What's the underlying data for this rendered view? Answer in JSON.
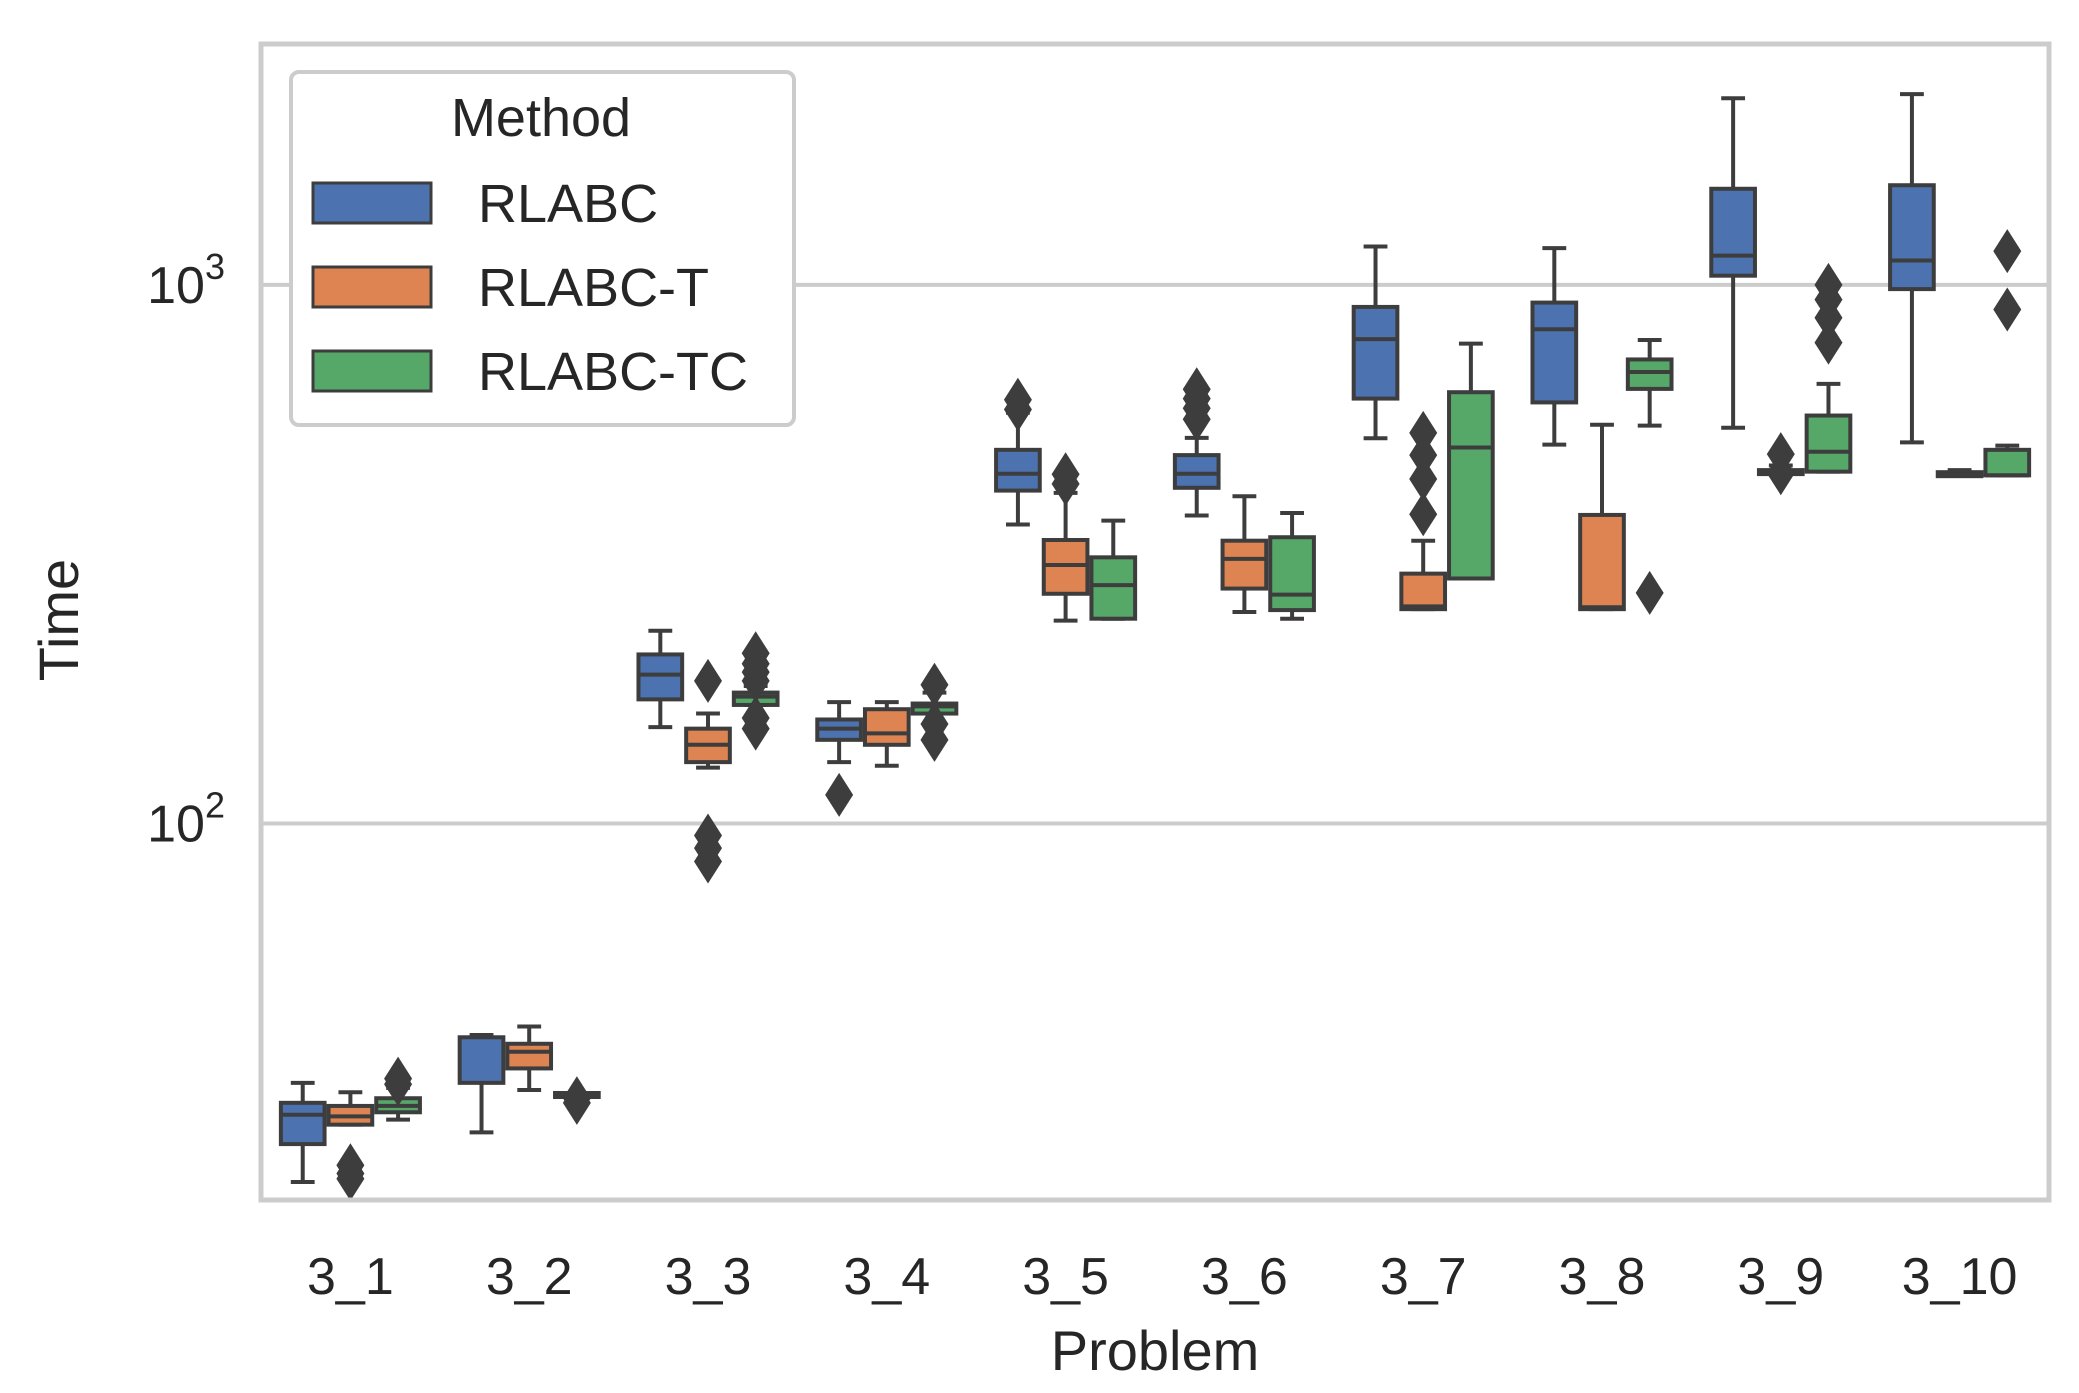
{
  "chart_data": {
    "type": "boxplot",
    "xlabel": "Problem",
    "ylabel": "Time",
    "yscale": "log",
    "ylim": [
      20,
      2800
    ],
    "yticks": [
      {
        "value": 100,
        "base": "10",
        "exp": "2"
      },
      {
        "value": 1000,
        "base": "10",
        "exp": "3"
      }
    ],
    "grid": true,
    "categories": [
      "3_1",
      "3_2",
      "3_3",
      "3_4",
      "3_5",
      "3_6",
      "3_7",
      "3_8",
      "3_9",
      "3_10"
    ],
    "legend": {
      "title": "Method",
      "position": "top-left"
    },
    "series": [
      {
        "name": "RLABC",
        "color": "#4c72b0",
        "boxes": [
          {
            "whislo": 21.6,
            "q1": 25.4,
            "med": 28.8,
            "q3": 30.3,
            "whishi": 33.0,
            "fliers": []
          },
          {
            "whislo": 26.7,
            "q1": 33.0,
            "med": null,
            "q3": 40.1,
            "whishi": 40.5,
            "fliers": []
          },
          {
            "whislo": 151,
            "q1": 170,
            "med": 189,
            "q3": 206,
            "whishi": 228,
            "fliers": []
          },
          {
            "whislo": 130,
            "q1": 143,
            "med": 150,
            "q3": 156,
            "whishi": 168,
            "fliers": [
              113
            ]
          },
          {
            "whislo": 359,
            "q1": 415,
            "med": 446,
            "q3": 494,
            "whishi": 579,
            "fliers": [
              587,
              612
            ]
          },
          {
            "whislo": 373,
            "q1": 420,
            "med": 446,
            "q3": 483,
            "whishi": 520,
            "fliers": [
              563,
              590,
              615,
              640
            ]
          },
          {
            "whislo": 519,
            "q1": 615,
            "med": 793,
            "q3": 910,
            "whishi": 1178,
            "fliers": []
          },
          {
            "whislo": 505,
            "q1": 605,
            "med": 827,
            "q3": 927,
            "whishi": 1170,
            "fliers": []
          },
          {
            "whislo": 543,
            "q1": 1040,
            "med": 1133,
            "q3": 1508,
            "whishi": 2221,
            "fliers": []
          },
          {
            "whislo": 510,
            "q1": 982,
            "med": 1110,
            "q3": 1531,
            "whishi": 2260,
            "fliers": []
          }
        ]
      },
      {
        "name": "RLABC-T",
        "color": "#dd8452",
        "boxes": [
          {
            "whislo": 27.6,
            "q1": 27.6,
            "med": 28.6,
            "q3": 29.9,
            "whishi": 31.7,
            "fliers": [
              21.9,
              22.4,
              23.2
            ]
          },
          {
            "whislo": 32.0,
            "q1": 35.1,
            "med": 37.7,
            "q3": 39.0,
            "whishi": 42.0,
            "fliers": []
          },
          {
            "whislo": 127,
            "q1": 130,
            "med": 140,
            "q3": 150,
            "whishi": 160,
            "fliers": [
              85,
              90,
              95,
              184
            ]
          },
          {
            "whislo": 128,
            "q1": 140,
            "med": 147,
            "q3": 163,
            "whishi": 168,
            "fliers": []
          },
          {
            "whislo": 238,
            "q1": 267,
            "med": 302,
            "q3": 336,
            "whishi": 411,
            "fliers": [
              427,
              445
            ]
          },
          {
            "whislo": 247,
            "q1": 273,
            "med": 310,
            "q3": 335,
            "whishi": 405,
            "fliers": []
          },
          {
            "whislo": 250,
            "q1": 250,
            "med": 253,
            "q3": 291,
            "whishi": 335,
            "fliers": [
              375,
              436,
              483,
              531
            ]
          },
          {
            "whislo": 250,
            "q1": 250,
            "med": 252,
            "q3": 374,
            "whishi": 550,
            "fliers": []
          },
          {
            "whislo": 448,
            "q1": 448,
            "med": 452,
            "q3": 453,
            "whishi": 462,
            "fliers": [
              447,
              485
            ]
          },
          {
            "whislo": 442,
            "q1": 442,
            "med": 445,
            "q3": 449,
            "whishi": 453,
            "fliers": []
          }
        ]
      },
      {
        "name": "RLABC-TC",
        "color": "#55a868",
        "boxes": [
          {
            "whislo": 28.2,
            "q1": 29.1,
            "med": 29.9,
            "q3": 30.9,
            "whishi": 32.3,
            "fliers": [
              32.8,
              33.6
            ]
          },
          {
            "whislo": 31.6,
            "q1": 31.6,
            "med": 31.6,
            "q3": 31.6,
            "whishi": 31.6,
            "fliers": [
              30.3,
              30.9
            ]
          },
          {
            "whislo": 166,
            "q1": 166,
            "med": 172,
            "q3": 175,
            "whishi": 180,
            "fliers": [
              150,
              157,
              184,
              191,
              198,
              207
            ]
          },
          {
            "whislo": 160,
            "q1": 160,
            "med": 165,
            "q3": 167,
            "whishi": 175,
            "fliers": [
              143,
              153,
              181
            ]
          },
          {
            "whislo": 240,
            "q1": 240,
            "med": 277,
            "q3": 312,
            "whishi": 365,
            "fliers": []
          },
          {
            "whislo": 240,
            "q1": 249,
            "med": 266,
            "q3": 340,
            "whishi": 377,
            "fliers": []
          },
          {
            "whislo": 285,
            "q1": 285,
            "med": 499,
            "q3": 632,
            "whishi": 778,
            "fliers": []
          },
          {
            "whislo": 548,
            "q1": 641,
            "med": 689,
            "q3": 727,
            "whishi": 790,
            "fliers": [
              268
            ]
          },
          {
            "whislo": 450,
            "q1": 450,
            "med": 490,
            "q3": 572,
            "whishi": 655,
            "fliers": [
              781,
              869,
              939,
              1000
            ]
          },
          {
            "whislo": 443,
            "q1": 443,
            "med": 443,
            "q3": 494,
            "whishi": 503,
            "fliers": [
              900,
              1155
            ]
          }
        ]
      }
    ]
  }
}
